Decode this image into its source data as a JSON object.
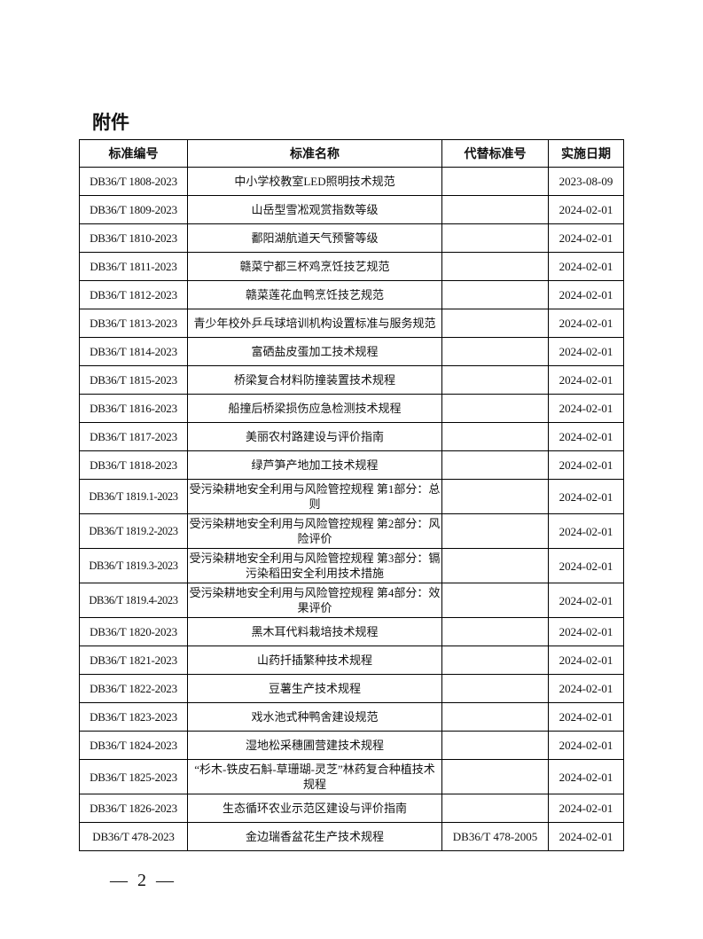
{
  "title": "附件",
  "table": {
    "headers": [
      "标准编号",
      "标准名称",
      "代替标准号",
      "实施日期"
    ],
    "rows": [
      {
        "code": "DB36/T 1808-2023",
        "name": "中小学校教室LED照明技术规范",
        "replaces": "",
        "date": "2023-08-09"
      },
      {
        "code": "DB36/T 1809-2023",
        "name": "山岳型雪凇观赏指数等级",
        "replaces": "",
        "date": "2024-02-01"
      },
      {
        "code": "DB36/T 1810-2023",
        "name": "鄱阳湖航道天气预警等级",
        "replaces": "",
        "date": "2024-02-01"
      },
      {
        "code": "DB36/T 1811-2023",
        "name": "赣菜宁都三杯鸡烹饪技艺规范",
        "replaces": "",
        "date": "2024-02-01"
      },
      {
        "code": "DB36/T 1812-2023",
        "name": "赣菜莲花血鸭烹饪技艺规范",
        "replaces": "",
        "date": "2024-02-01"
      },
      {
        "code": "DB36/T 1813-2023",
        "name": "青少年校外乒乓球培训机构设置标准与服务规范",
        "replaces": "",
        "date": "2024-02-01"
      },
      {
        "code": "DB36/T 1814-2023",
        "name": "富硒盐皮蛋加工技术规程",
        "replaces": "",
        "date": "2024-02-01"
      },
      {
        "code": "DB36/T 1815-2023",
        "name": "桥梁复合材料防撞装置技术规程",
        "replaces": "",
        "date": "2024-02-01"
      },
      {
        "code": "DB36/T 1816-2023",
        "name": "船撞后桥梁损伤应急检测技术规程",
        "replaces": "",
        "date": "2024-02-01"
      },
      {
        "code": "DB36/T 1817-2023",
        "name": "美丽农村路建设与评价指南",
        "replaces": "",
        "date": "2024-02-01"
      },
      {
        "code": "DB36/T 1818-2023",
        "name": "绿芦笋产地加工技术规程",
        "replaces": "",
        "date": "2024-02-01"
      },
      {
        "code": "DB36/T 1819.1-2023",
        "name": "受污染耕地安全利用与风险管控规程 第1部分：总则",
        "replaces": "",
        "date": "2024-02-01"
      },
      {
        "code": "DB36/T 1819.2-2023",
        "name": "受污染耕地安全利用与风险管控规程 第2部分：风险评价",
        "replaces": "",
        "date": "2024-02-01"
      },
      {
        "code": "DB36/T 1819.3-2023",
        "name": "受污染耕地安全利用与风险管控规程 第3部分：镉污染稻田安全利用技术措施",
        "replaces": "",
        "date": "2024-02-01"
      },
      {
        "code": "DB36/T 1819.4-2023",
        "name": "受污染耕地安全利用与风险管控规程 第4部分：效果评价",
        "replaces": "",
        "date": "2024-02-01"
      },
      {
        "code": "DB36/T 1820-2023",
        "name": "黑木耳代料栽培技术规程",
        "replaces": "",
        "date": "2024-02-01"
      },
      {
        "code": "DB36/T 1821-2023",
        "name": "山药扦插繁种技术规程",
        "replaces": "",
        "date": "2024-02-01"
      },
      {
        "code": "DB36/T 1822-2023",
        "name": "豆薯生产技术规程",
        "replaces": "",
        "date": "2024-02-01"
      },
      {
        "code": "DB36/T 1823-2023",
        "name": "戏水池式种鸭舍建设规范",
        "replaces": "",
        "date": "2024-02-01"
      },
      {
        "code": "DB36/T 1824-2023",
        "name": "湿地松采穗圃营建技术规程",
        "replaces": "",
        "date": "2024-02-01"
      },
      {
        "code": "DB36/T 1825-2023",
        "name": "“杉木-铁皮石斛-草珊瑚-灵芝”林药复合种植技术规程",
        "replaces": "",
        "date": "2024-02-01"
      },
      {
        "code": "DB36/T 1826-2023",
        "name": "生态循环农业示范区建设与评价指南",
        "replaces": "",
        "date": "2024-02-01"
      },
      {
        "code": "DB36/T 478-2023",
        "name": "金边瑞香盆花生产技术规程",
        "replaces": "DB36/T 478-2005",
        "date": "2024-02-01"
      }
    ]
  },
  "footer": {
    "page_number": "— 2 —"
  }
}
